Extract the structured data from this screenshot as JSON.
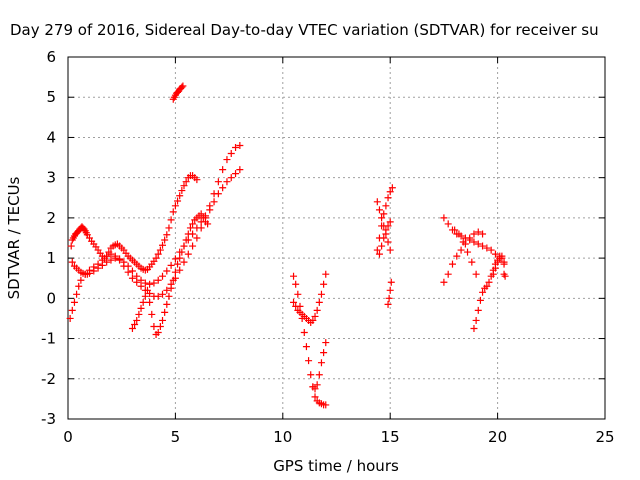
{
  "chart_data": {
    "type": "scatter",
    "title": "Day 279 of 2016, Sidereal Day-to-day VTEC variation (SDTVAR) for receiver su",
    "xlabel": "GPS time / hours",
    "ylabel": "SDTVAR / TECUs",
    "xlim": [
      0,
      25
    ],
    "ylim": [
      -3,
      6
    ],
    "xticks": [
      "0",
      "5",
      "10",
      "15",
      "20",
      "25"
    ],
    "yticks": [
      "-3",
      "-2",
      "-1",
      "0",
      "1",
      "2",
      "3",
      "4",
      "5",
      "6"
    ],
    "grid": true,
    "marker": "plus",
    "color": "#ff0000",
    "series": [
      {
        "x": [
          0.15,
          0.2,
          0.25,
          0.3,
          0.35,
          0.4,
          0.45,
          0.5,
          0.55,
          0.6,
          0.65,
          0.7,
          0.75,
          0.8,
          0.85,
          0.9,
          1.0,
          1.1,
          1.2,
          1.3,
          1.4,
          1.5,
          1.6,
          1.7,
          1.8,
          1.9,
          2.0,
          2.1,
          2.2,
          2.3,
          2.4,
          2.5,
          2.6,
          2.7,
          2.8,
          2.9,
          3.0,
          3.1,
          3.2,
          3.3,
          3.4,
          3.5,
          3.6,
          3.7,
          3.8,
          3.9,
          4.0,
          4.1,
          4.2,
          4.3,
          4.4,
          4.5,
          4.6,
          4.7,
          4.8,
          4.9,
          5.0,
          5.1,
          5.2,
          5.3,
          5.4,
          5.5,
          5.6,
          5.7,
          5.8,
          5.9,
          6.0
        ],
        "y": [
          1.3,
          1.45,
          1.5,
          1.55,
          1.6,
          1.62,
          1.65,
          1.68,
          1.72,
          1.75,
          1.78,
          1.75,
          1.72,
          1.68,
          1.63,
          1.58,
          1.5,
          1.42,
          1.35,
          1.28,
          1.2,
          1.12,
          1.05,
          1.0,
          1.05,
          1.15,
          1.25,
          1.3,
          1.33,
          1.35,
          1.3,
          1.25,
          1.2,
          1.12,
          1.05,
          1.0,
          0.95,
          0.9,
          0.85,
          0.8,
          0.75,
          0.72,
          0.7,
          0.72,
          0.78,
          0.85,
          0.92,
          1.0,
          1.1,
          1.2,
          1.32,
          1.45,
          1.58,
          1.75,
          1.95,
          2.15,
          2.3,
          2.42,
          2.55,
          2.68,
          2.8,
          2.9,
          3.0,
          3.05,
          3.05,
          3.0,
          2.95
        ]
      },
      {
        "x": [
          0.2,
          0.3,
          0.4,
          0.5,
          0.6,
          0.7,
          0.8,
          0.9,
          1.0,
          1.2,
          1.4,
          1.6,
          1.8,
          2.0,
          2.2,
          2.4,
          2.6,
          2.8,
          3.0,
          3.2,
          3.4,
          3.6,
          3.8,
          4.0,
          4.2,
          4.4,
          4.6,
          4.8,
          5.0,
          5.2,
          5.4,
          5.6,
          5.8,
          6.0,
          6.2,
          6.4,
          6.6,
          6.8,
          7.0,
          7.2,
          7.4,
          7.6,
          7.8,
          8.0
        ],
        "y": [
          0.9,
          0.8,
          0.75,
          0.7,
          0.65,
          0.62,
          0.6,
          0.6,
          0.62,
          0.68,
          0.75,
          0.82,
          0.9,
          0.95,
          1.0,
          0.98,
          0.9,
          0.8,
          0.68,
          0.55,
          0.45,
          0.38,
          0.35,
          0.38,
          0.45,
          0.55,
          0.68,
          0.82,
          0.98,
          1.15,
          1.3,
          1.45,
          1.6,
          1.75,
          1.9,
          2.05,
          2.2,
          2.4,
          2.6,
          2.75,
          2.9,
          3.0,
          3.1,
          3.2
        ]
      },
      {
        "x": [
          0.1,
          0.2,
          0.3,
          0.4,
          0.5,
          0.6,
          0.8,
          1.0,
          1.2,
          1.4,
          1.6,
          1.8,
          2.0,
          2.2,
          2.4,
          2.6,
          2.8,
          3.0,
          3.2,
          3.4,
          3.6,
          3.8,
          4.0,
          4.2,
          4.4,
          4.6,
          4.8,
          5.0,
          5.2,
          5.4,
          5.6,
          5.8,
          6.0,
          6.2,
          6.4,
          6.6,
          6.8,
          7.0,
          7.2,
          7.4,
          7.6,
          7.8,
          8.0
        ],
        "y": [
          -0.5,
          -0.3,
          -0.1,
          0.1,
          0.3,
          0.45,
          0.6,
          0.7,
          0.78,
          0.85,
          0.95,
          1.05,
          1.1,
          1.05,
          0.95,
          0.8,
          0.65,
          0.5,
          0.4,
          0.3,
          0.2,
          0.12,
          0.05,
          0.05,
          0.1,
          0.2,
          0.35,
          0.5,
          0.7,
          0.9,
          1.1,
          1.3,
          1.5,
          1.75,
          2.0,
          2.3,
          2.6,
          2.9,
          3.2,
          3.45,
          3.6,
          3.75,
          3.8
        ]
      },
      {
        "x": [
          3.0,
          3.1,
          3.2,
          3.3,
          3.4,
          3.5,
          3.6,
          3.7,
          3.8,
          3.9,
          4.0,
          4.1,
          4.2,
          4.3,
          4.4,
          4.5,
          4.6,
          4.7,
          4.8,
          4.9,
          5.0,
          5.1,
          5.2,
          5.3,
          5.4,
          5.5,
          5.6,
          5.7,
          5.8,
          5.9,
          6.0,
          6.1,
          6.2,
          6.3,
          6.4,
          6.5
        ],
        "y": [
          -0.75,
          -0.65,
          -0.55,
          -0.4,
          -0.25,
          -0.1,
          0.05,
          0.2,
          -0.1,
          -0.4,
          -0.7,
          -0.9,
          -0.85,
          -0.7,
          -0.55,
          -0.35,
          -0.15,
          0.05,
          0.25,
          0.45,
          0.65,
          0.85,
          1.0,
          1.15,
          1.3,
          1.45,
          1.6,
          1.75,
          1.85,
          1.95,
          2.0,
          2.05,
          2.1,
          2.0,
          1.9,
          1.85
        ]
      },
      {
        "x": [
          4.9,
          4.95,
          5.0,
          5.05,
          5.1,
          5.15,
          5.2,
          5.25,
          5.3,
          5.35
        ],
        "y": [
          4.95,
          5.0,
          5.05,
          5.1,
          5.12,
          5.15,
          5.2,
          5.22,
          5.25,
          5.28
        ]
      },
      {
        "x": [
          10.5,
          10.6,
          10.7,
          10.8,
          10.9,
          11.0,
          11.1,
          11.2,
          11.3,
          11.4,
          11.5,
          11.6,
          11.7,
          11.8,
          11.9,
          12.0
        ],
        "y": [
          0.55,
          0.35,
          0.1,
          -0.2,
          -0.5,
          -0.85,
          -1.2,
          -1.55,
          -1.9,
          -2.2,
          -2.45,
          -2.55,
          -2.6,
          -2.62,
          -2.65,
          -2.65
        ]
      },
      {
        "x": [
          10.5,
          10.6,
          10.7,
          10.8,
          10.9,
          11.0,
          11.1,
          11.2,
          11.3,
          11.4,
          11.5,
          11.6,
          11.7,
          11.8,
          11.9,
          12.0
        ],
        "y": [
          -0.1,
          -0.2,
          -0.3,
          -0.35,
          -0.4,
          -0.45,
          -0.5,
          -0.55,
          -0.6,
          -0.55,
          -0.45,
          -0.3,
          -0.1,
          0.1,
          0.35,
          0.6
        ]
      },
      {
        "x": [
          11.4,
          11.5,
          11.6,
          11.7,
          11.8,
          11.9,
          12.0
        ],
        "y": [
          -2.2,
          -2.25,
          -2.15,
          -1.9,
          -1.6,
          -1.35,
          -1.1
        ]
      },
      {
        "x": [
          14.4,
          14.5,
          14.6,
          14.7,
          14.8,
          14.9,
          15.0,
          15.1
        ],
        "y": [
          1.2,
          1.5,
          1.8,
          2.1,
          2.3,
          2.5,
          2.65,
          2.75
        ]
      },
      {
        "x": [
          14.4,
          14.5,
          14.6,
          14.7,
          14.8,
          14.9,
          15.0
        ],
        "y": [
          2.4,
          2.2,
          2.0,
          1.8,
          1.6,
          1.4,
          1.2
        ]
      },
      {
        "x": [
          14.5,
          14.6,
          14.7,
          14.8,
          14.9,
          15.0
        ],
        "y": [
          1.1,
          1.3,
          1.5,
          1.7,
          1.8,
          1.9
        ]
      },
      {
        "x": [
          14.9,
          14.95,
          15.0,
          15.05
        ],
        "y": [
          -0.15,
          0.0,
          0.2,
          0.4
        ]
      },
      {
        "x": [
          17.5,
          17.7,
          17.9,
          18.1,
          18.3,
          18.5,
          18.7,
          18.9,
          19.1,
          19.3,
          19.5,
          19.7,
          19.9,
          20.1,
          20.3
        ],
        "y": [
          2.0,
          1.85,
          1.7,
          1.6,
          1.55,
          1.5,
          1.45,
          1.4,
          1.35,
          1.3,
          1.25,
          1.2,
          1.1,
          1.0,
          0.9
        ]
      },
      {
        "x": [
          17.5,
          17.7,
          17.9,
          18.1,
          18.3,
          18.5,
          18.7,
          18.9,
          19.1,
          19.3
        ],
        "y": [
          0.4,
          0.6,
          0.85,
          1.05,
          1.2,
          1.35,
          1.5,
          1.6,
          1.65,
          1.6
        ]
      },
      {
        "x": [
          18.0,
          18.2,
          18.4,
          18.6,
          18.8,
          19.0
        ],
        "y": [
          1.7,
          1.6,
          1.4,
          1.15,
          0.9,
          0.6
        ]
      },
      {
        "x": [
          18.9,
          19.0,
          19.1,
          19.2,
          19.3,
          19.4,
          19.5,
          19.6,
          19.7,
          19.8,
          19.9,
          20.0,
          20.1,
          20.2,
          20.3
        ],
        "y": [
          -0.75,
          -0.55,
          -0.3,
          -0.05,
          0.15,
          0.25,
          0.3,
          0.4,
          0.55,
          0.7,
          0.85,
          0.95,
          1.05,
          1.0,
          0.6
        ]
      },
      {
        "x": [
          19.8,
          19.9,
          20.0,
          20.1,
          20.2,
          20.3,
          20.35
        ],
        "y": [
          0.6,
          0.75,
          0.9,
          1.0,
          1.05,
          0.85,
          0.55
        ]
      }
    ]
  }
}
